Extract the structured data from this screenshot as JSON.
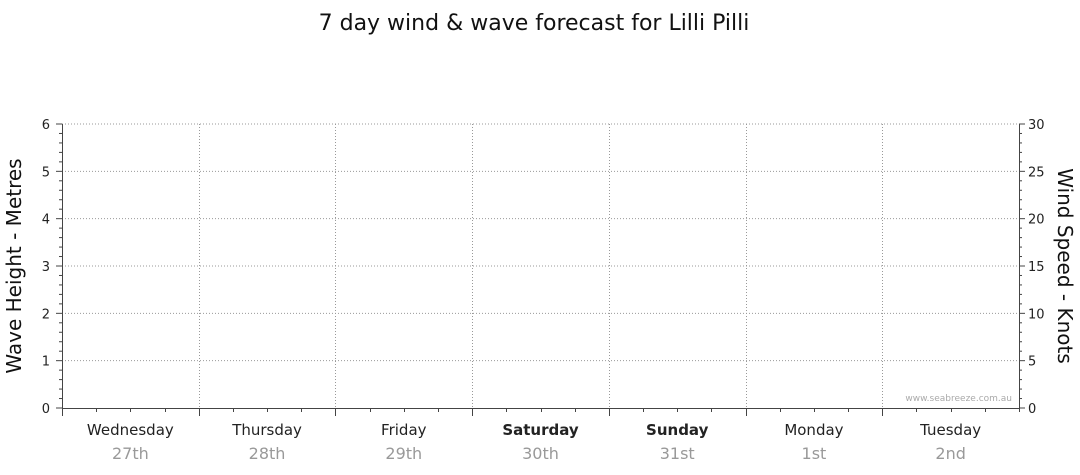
{
  "chart_data": {
    "type": "line",
    "title": "7 day wind & wave forecast for Lilli Pilli",
    "y_left_label": "Wave Height - Metres",
    "y_right_label": "Wind Speed - Knots",
    "y_left_range": [
      0,
      6
    ],
    "y_left_ticks": [
      "0",
      "1",
      "2",
      "3",
      "4",
      "5",
      "6"
    ],
    "y_right_range": [
      0,
      30
    ],
    "y_right_ticks": [
      "0",
      "5",
      "10",
      "15",
      "20",
      "25",
      "30"
    ],
    "grid": true,
    "days": [
      {
        "day": "Wednesday",
        "date": "27th",
        "bold": false
      },
      {
        "day": "Thursday",
        "date": "28th",
        "bold": false
      },
      {
        "day": "Friday",
        "date": "29th",
        "bold": false
      },
      {
        "day": "Saturday",
        "date": "30th",
        "bold": true
      },
      {
        "day": "Sunday",
        "date": "31st",
        "bold": true
      },
      {
        "day": "Monday",
        "date": "1st",
        "bold": false
      },
      {
        "day": "Tuesday",
        "date": "2nd",
        "bold": false
      }
    ],
    "series": [],
    "watermark": "www.seabreeze.com.au"
  }
}
